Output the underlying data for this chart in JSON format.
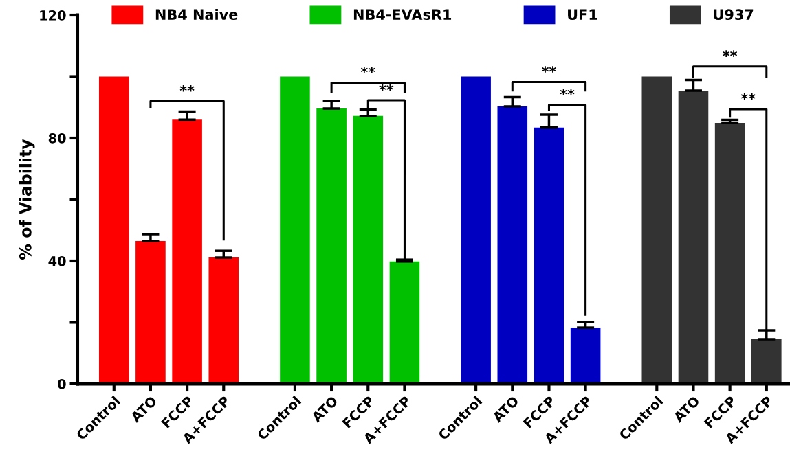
{
  "chart_data": {
    "type": "bar",
    "ylabel": "% of Viability",
    "categories": [
      "Control",
      "ATO",
      "FCCP",
      "A+FCCP",
      "Control",
      "ATO",
      "FCCP",
      "A+FCCP",
      "Control",
      "ATO",
      "FCCP",
      "A+FCCP",
      "Control",
      "ATO",
      "FCCP",
      "A+FCCP"
    ],
    "series": [
      {
        "name": "NB4 Naive",
        "color": "#ff0000",
        "values": [
          100,
          46.5,
          86,
          41.1,
          null,
          null,
          null,
          null,
          null,
          null,
          null,
          null,
          null,
          null,
          null,
          null
        ],
        "errors": [
          null,
          [
            46.5,
            48.7
          ],
          [
            86,
            88.6
          ],
          [
            41.1,
            43.3
          ],
          null,
          null,
          null,
          null,
          null,
          null,
          null,
          null,
          null,
          null,
          null,
          null
        ]
      },
      {
        "name": "NB4-EVAsR1",
        "color": "#00c000",
        "values": [
          null,
          null,
          null,
          null,
          100,
          89.6,
          87.2,
          39.8,
          null,
          null,
          null,
          null,
          null,
          null,
          null,
          null
        ],
        "errors": [
          null,
          null,
          null,
          null,
          null,
          [
            89.6,
            92.1
          ],
          [
            87.2,
            89.3
          ],
          [
            39.8,
            40.4
          ],
          null,
          null,
          null,
          null,
          null,
          null,
          null,
          null
        ]
      },
      {
        "name": "UF1",
        "color": "#0000c0",
        "values": [
          null,
          null,
          null,
          null,
          null,
          null,
          null,
          null,
          100,
          90.3,
          83.4,
          18.3,
          null,
          null,
          null,
          null
        ],
        "errors": [
          null,
          null,
          null,
          null,
          null,
          null,
          null,
          null,
          null,
          [
            90.3,
            93.3
          ],
          [
            83.4,
            87.6
          ],
          [
            18.3,
            20.1
          ],
          null,
          null,
          null,
          null
        ]
      },
      {
        "name": "U937",
        "color": "#333333",
        "values": [
          null,
          null,
          null,
          null,
          null,
          null,
          null,
          null,
          null,
          null,
          null,
          null,
          100,
          95.4,
          84.9,
          14.5
        ],
        "errors": [
          null,
          null,
          null,
          null,
          null,
          null,
          null,
          null,
          null,
          null,
          null,
          null,
          null,
          [
            95.4,
            98.9
          ],
          [
            84.9,
            85.9
          ],
          [
            14.5,
            17.4
          ]
        ]
      }
    ],
    "ylim": [
      0,
      120
    ],
    "yticks": [
      0,
      {
        "value": 20,
        "label": null
      },
      40,
      {
        "value": 60,
        "label": null
      },
      80,
      {
        "value": 100,
        "label": null
      },
      120
    ],
    "grid": false,
    "legend": "top",
    "annotations": [
      "**",
      "**",
      "**",
      "**",
      "**",
      "**",
      "**"
    ]
  }
}
